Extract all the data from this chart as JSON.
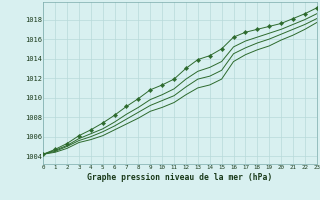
{
  "x": [
    0,
    1,
    2,
    3,
    4,
    5,
    6,
    7,
    8,
    9,
    10,
    11,
    12,
    13,
    14,
    15,
    16,
    17,
    18,
    19,
    20,
    21,
    22,
    23
  ],
  "y_main": [
    1004.2,
    1004.7,
    1005.3,
    1006.1,
    1006.7,
    1007.4,
    1008.2,
    1009.1,
    1009.9,
    1010.8,
    1011.3,
    1011.9,
    1013.0,
    1013.9,
    1014.3,
    1015.0,
    1016.2,
    1016.7,
    1017.0,
    1017.3,
    1017.6,
    1018.1,
    1018.6,
    1019.2
  ],
  "y_line2": [
    1004.2,
    1004.6,
    1005.1,
    1005.8,
    1006.3,
    1006.8,
    1007.5,
    1008.3,
    1009.0,
    1009.8,
    1010.3,
    1010.9,
    1011.9,
    1012.7,
    1013.1,
    1013.7,
    1015.2,
    1015.8,
    1016.2,
    1016.6,
    1017.0,
    1017.5,
    1018.0,
    1018.6
  ],
  "y_line3": [
    1004.2,
    1004.5,
    1005.0,
    1005.6,
    1006.0,
    1006.5,
    1007.1,
    1007.8,
    1008.5,
    1009.2,
    1009.7,
    1010.2,
    1011.1,
    1011.9,
    1012.2,
    1012.8,
    1014.5,
    1015.1,
    1015.6,
    1016.0,
    1016.5,
    1017.0,
    1017.5,
    1018.1
  ],
  "y_line4": [
    1004.2,
    1004.4,
    1004.8,
    1005.4,
    1005.7,
    1006.1,
    1006.7,
    1007.3,
    1007.9,
    1008.6,
    1009.0,
    1009.5,
    1010.3,
    1011.0,
    1011.3,
    1011.9,
    1013.7,
    1014.4,
    1014.9,
    1015.3,
    1015.9,
    1016.4,
    1017.0,
    1017.7
  ],
  "line_color": "#2d6a2d",
  "bg_color": "#d8f0f0",
  "grid_color": "#b8dada",
  "ylabel_ticks": [
    1004,
    1006,
    1008,
    1010,
    1012,
    1014,
    1016,
    1018
  ],
  "xlabel": "Graphe pression niveau de la mer (hPa)",
  "ylim": [
    1003.2,
    1019.8
  ],
  "xlim": [
    0,
    23
  ]
}
